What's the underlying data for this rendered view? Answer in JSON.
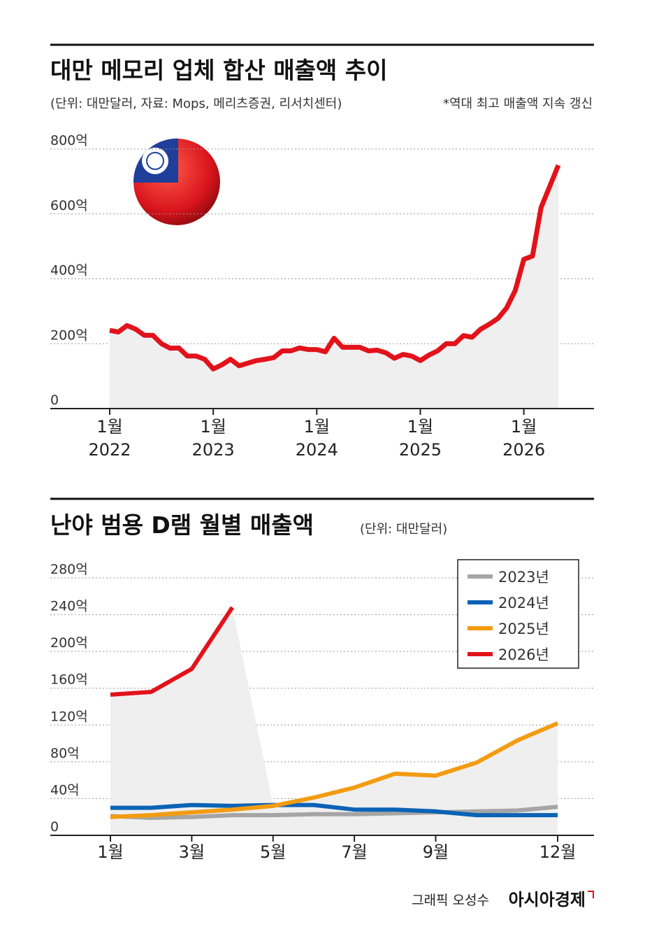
{
  "chart_data": [
    {
      "type": "line",
      "title": "대만 메모리 업체 합산 매출액 추이",
      "subtitle": "(단위: 대만달러, 자료: Mops, 메리츠증권, 리서치센터)",
      "note": "*역대 최고 매출액 지속 갱신",
      "x": [
        "2022-01",
        "2022-02",
        "2022-03",
        "2022-04",
        "2022-05",
        "2022-06",
        "2022-07",
        "2022-08",
        "2022-09",
        "2022-10",
        "2022-11",
        "2022-12",
        "2023-01",
        "2023-02",
        "2023-03",
        "2023-04",
        "2023-05",
        "2023-06",
        "2023-07",
        "2023-08",
        "2023-09",
        "2023-10",
        "2023-11",
        "2023-12",
        "2024-01",
        "2024-02",
        "2024-03",
        "2024-04",
        "2024-05",
        "2024-06",
        "2024-07",
        "2024-08",
        "2024-09",
        "2024-10",
        "2024-11",
        "2024-12",
        "2025-01",
        "2025-02",
        "2025-03",
        "2025-04",
        "2025-05",
        "2025-06",
        "2025-07",
        "2025-08",
        "2025-09",
        "2025-10",
        "2025-11",
        "2025-12",
        "2026-01",
        "2026-02",
        "2026-03",
        "2026-04",
        "2026-05"
      ],
      "series": [
        {
          "name": "합산 매출액",
          "color": "#e2121b",
          "values": [
            241,
            236,
            256,
            245,
            226,
            226,
            200,
            186,
            187,
            162,
            162,
            152,
            122,
            135,
            152,
            132,
            140,
            148,
            152,
            157,
            178,
            178,
            187,
            182,
            182,
            175,
            217,
            189,
            189,
            189,
            178,
            180,
            172,
            155,
            167,
            162,
            148,
            165,
            178,
            200,
            200,
            225,
            220,
            245,
            260,
            278,
            310,
            364,
            460,
            470,
            620,
            685,
            750
          ]
        }
      ],
      "ylim": [
        0,
        800
      ],
      "yticks": [
        0,
        {
          "value": 200,
          "label": "200억"
        },
        {
          "value": 400,
          "label": "400억"
        },
        {
          "value": 600,
          "label": "600억"
        },
        {
          "value": 800,
          "label": "800억"
        }
      ],
      "xticks": [
        {
          "value": "2022-01",
          "label": "1월\n2022"
        },
        {
          "value": "2023-01",
          "label": "1월\n2023"
        },
        {
          "value": "2024-01",
          "label": "1월\n2024"
        },
        {
          "value": "2025-01",
          "label": "1월\n2025"
        },
        {
          "value": "2026-01",
          "label": "1월\n2026"
        }
      ],
      "grid": true,
      "area": true
    },
    {
      "type": "line",
      "title": "난야 범용 D램 월별 매출액",
      "subtitle": "(단위: 대만달러)",
      "categories": [
        "1월",
        null,
        "3월",
        null,
        "5월",
        null,
        "7월",
        null,
        "9월",
        null,
        null,
        "12월"
      ],
      "series": [
        {
          "name": "2023년",
          "color": "#a5a5a5",
          "values": [
            21,
            19,
            20,
            22,
            22,
            23,
            23,
            24,
            25,
            26,
            27,
            31
          ]
        },
        {
          "name": "2024년",
          "color": "#0a63b5",
          "values": [
            30,
            30,
            33,
            32,
            33,
            33,
            28,
            28,
            26,
            22,
            22,
            22
          ]
        },
        {
          "name": "2025년",
          "color": "#f29c11",
          "values": [
            20,
            22,
            25,
            28,
            32,
            41,
            52,
            67,
            65,
            79,
            103,
            122
          ]
        },
        {
          "name": "2026년",
          "color": "#e2121b",
          "values": [
            153,
            156,
            181,
            248,
            null,
            null,
            null,
            null,
            null,
            null,
            null,
            null
          ]
        }
      ],
      "ylim": [
        0,
        280
      ],
      "yticks": [
        0,
        {
          "value": 40,
          "label": "40억"
        },
        {
          "value": 80,
          "label": "80억"
        },
        {
          "value": 120,
          "label": "120억"
        },
        {
          "value": 160,
          "label": "160억"
        },
        {
          "value": 200,
          "label": "200억"
        },
        {
          "value": 240,
          "label": "240억"
        },
        {
          "value": 280,
          "label": "280억"
        }
      ],
      "grid": true,
      "area": true,
      "legend": "top-right"
    }
  ],
  "footer": {
    "credit": "그래픽 오성수",
    "logo": "아시아경제"
  }
}
